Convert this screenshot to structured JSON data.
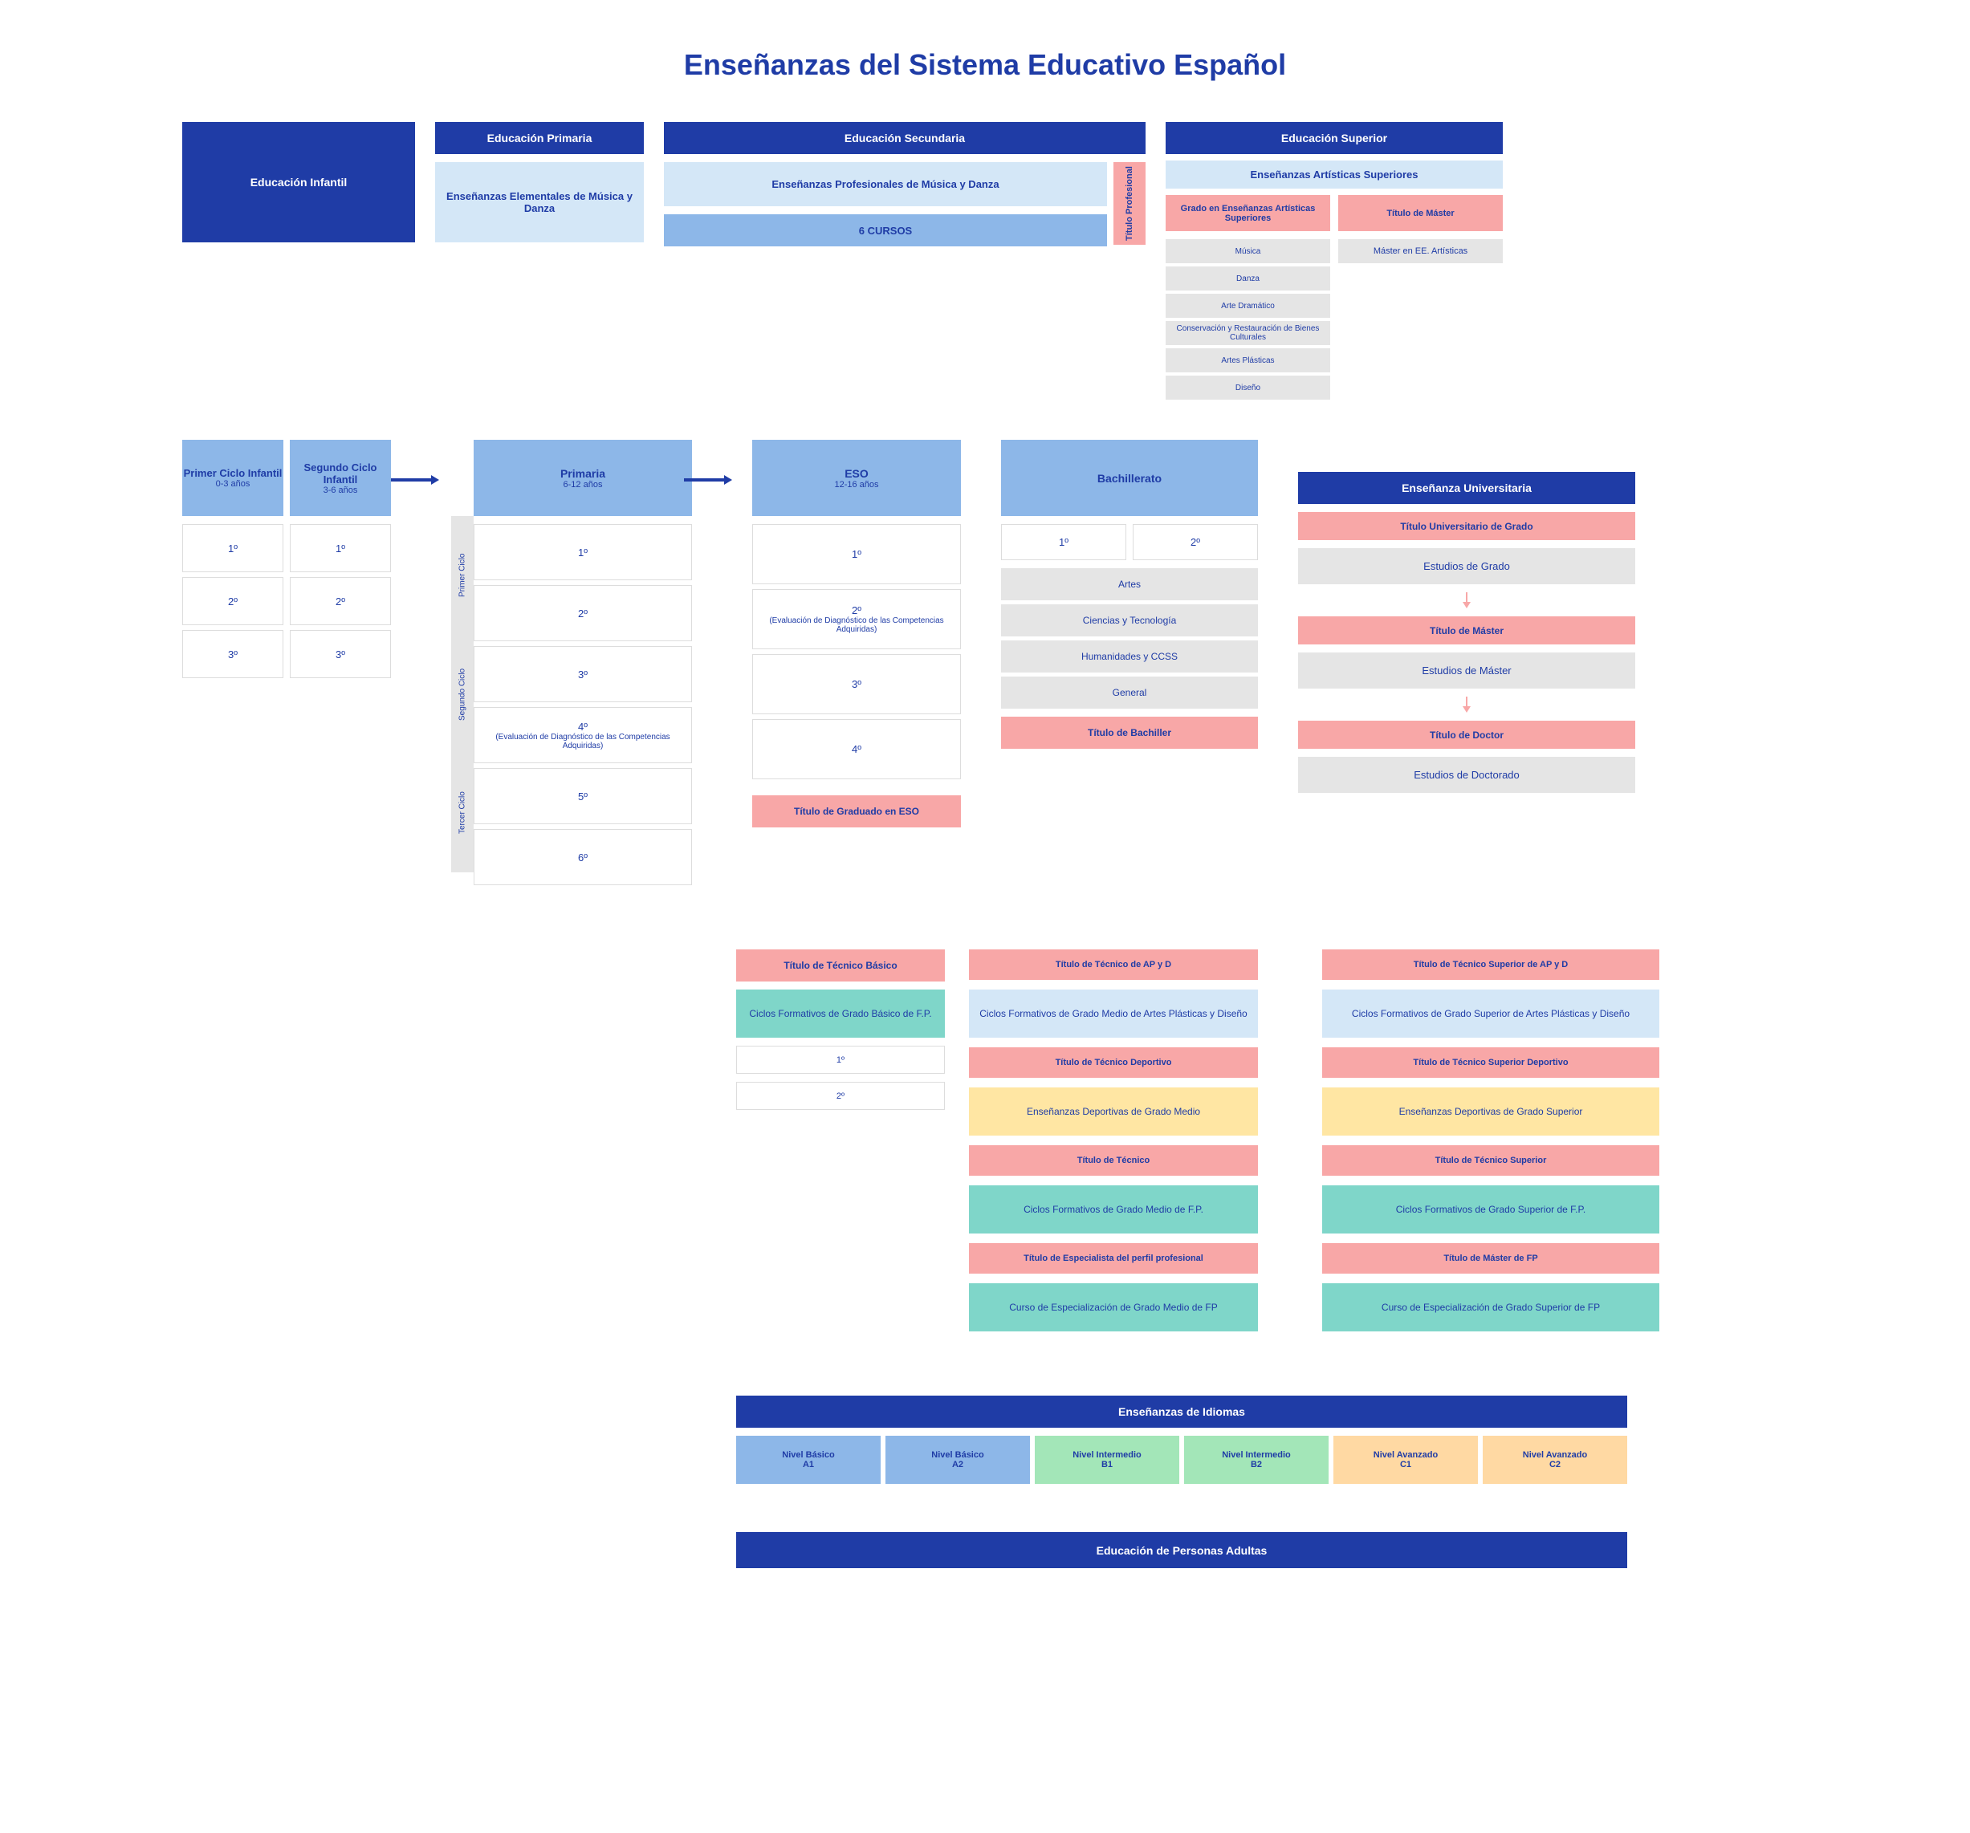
{
  "title": "Enseñanzas del Sistema Educativo Español",
  "colors": {
    "dark_blue": "#1f3ca6",
    "light_blue": "#d4e7f7",
    "med_blue": "#8db7e8",
    "pink": "#f8a7a7",
    "teal": "#7fd6c9",
    "yellow": "#ffe6a3",
    "grey": "#e5e5e5",
    "white": "#ffffff",
    "green": "#a3e6b8",
    "orange": "#ffd9a3"
  },
  "top": {
    "infantil": "Educación Infantil",
    "primaria_hdr": "Educación Primaria",
    "primaria_sub": "Enseñanzas Elementales de Música y Danza",
    "secundaria_hdr": "Educación Secundaria",
    "secundaria_sub": "Enseñanzas Profesionales de Música y Danza",
    "secundaria_cursos": "6 CURSOS",
    "titulo_prof": "Título Profesional",
    "superior_hdr": "Educación Superior",
    "artisticas_sub": "Enseñanzas Artísticas Superiores",
    "grado_art_hdr": "Grado en Enseñanzas Artísticas Superiores",
    "grado_art_items": [
      "Música",
      "Danza",
      "Arte Dramático",
      "Conservación y Restauración de Bienes Culturales",
      "Artes Plásticas",
      "Diseño"
    ],
    "master_hdr": "Título de Máster",
    "master_item": "Máster en EE. Artísticas"
  },
  "infantil": {
    "c1": {
      "title": "Primer Ciclo Infantil",
      "age": "0-3 años",
      "levels": [
        "1º",
        "2º",
        "3º"
      ]
    },
    "c2": {
      "title": "Segundo Ciclo Infantil",
      "age": "3-6 años",
      "levels": [
        "1º",
        "2º",
        "3º"
      ]
    }
  },
  "primaria": {
    "title": "Primaria",
    "age": "6-12 años",
    "cycles": [
      "Primer Ciclo",
      "Segundo Ciclo",
      "Tercer Ciclo"
    ],
    "levels": [
      "1º",
      "2º",
      "3º",
      "4º",
      "5º",
      "6º"
    ],
    "diag": "(Evaluación de Diagnóstico de las Competencias Adquiridas)"
  },
  "eso": {
    "title": "ESO",
    "age": "12-16 años",
    "levels": [
      "1º",
      "2º",
      "3º",
      "4º"
    ],
    "diag": "(Evaluación de Diagnóstico de las Competencias Adquiridas)",
    "titulo": "Título de Graduado en ESO"
  },
  "bach": {
    "title": "Bachillerato",
    "cursos": [
      "1º",
      "2º"
    ],
    "ramas": [
      "Artes",
      "Ciencias y Tecnología",
      "Humanidades y CCSS",
      "General"
    ],
    "titulo": "Título de Bachiller"
  },
  "univ": {
    "hdr": "Enseñanza Universitaria",
    "grado_t": "Título Universitario de Grado",
    "grado": "Estudios de Grado",
    "master_t": "Título de Máster",
    "master": "Estudios de Máster",
    "doctor_t": "Título de Doctor",
    "doctor": "Estudios de Doctorado"
  },
  "fp_basico": {
    "titulo": "Título de Técnico Básico",
    "ciclo": "Ciclos Formativos de Grado Básico de F.P.",
    "levels": [
      "1º",
      "2º"
    ]
  },
  "fp_medio": [
    {
      "titulo": "Título de Técnico de AP y D",
      "body": "Ciclos Formativos de Grado Medio de Artes Plásticas y Diseño",
      "body_color": "light-blue"
    },
    {
      "titulo": "Título de Técnico Deportivo",
      "body": "Enseñanzas Deportivas de Grado Medio",
      "body_color": "yellow"
    },
    {
      "titulo": "Título de Técnico",
      "body": "Ciclos Formativos de Grado Medio de F.P.",
      "body_color": "teal"
    },
    {
      "titulo": "Título de Especialista del perfil profesional",
      "body": "Curso de Especialización de Grado Medio de FP",
      "body_color": "teal"
    }
  ],
  "fp_superior": [
    {
      "titulo": "Título de Técnico Superior de AP y D",
      "body": "Ciclos Formativos de Grado Superior de Artes Plásticas y Diseño",
      "body_color": "light-blue"
    },
    {
      "titulo": "Título de Técnico Superior Deportivo",
      "body": "Enseñanzas Deportivas de Grado Superior",
      "body_color": "yellow"
    },
    {
      "titulo": "Título de Técnico Superior",
      "body": "Ciclos Formativos de Grado Superior de F.P.",
      "body_color": "teal"
    },
    {
      "titulo": "Título de Máster de FP",
      "body": "Curso de Especialización de Grado Superior de FP",
      "body_color": "teal"
    }
  ],
  "idiomas": {
    "hdr": "Enseñanzas de Idiomas",
    "levels": [
      {
        "label": "Nivel Básico",
        "sub": "A1",
        "color": "med-blue"
      },
      {
        "label": "Nivel Básico",
        "sub": "A2",
        "color": "med-blue"
      },
      {
        "label": "Nivel Intermedio",
        "sub": "B1",
        "color": "green"
      },
      {
        "label": "Nivel Intermedio",
        "sub": "B2",
        "color": "green"
      },
      {
        "label": "Nivel Avanzado",
        "sub": "C1",
        "color": "orange"
      },
      {
        "label": "Nivel Avanzado",
        "sub": "C2",
        "color": "orange"
      }
    ]
  },
  "adultas": "Educación de Personas Adultas"
}
